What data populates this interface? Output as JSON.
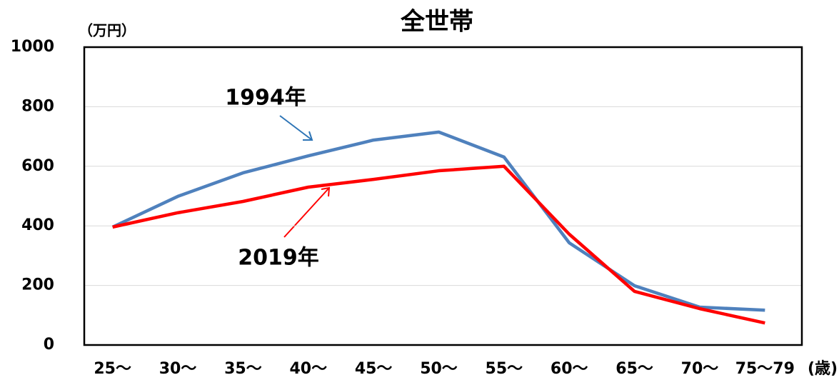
{
  "chart_data": {
    "type": "line",
    "title": "全世帯",
    "y_label": "（万円）",
    "x_label": "(歳)",
    "categories": [
      "25～",
      "30～",
      "35～",
      "40～",
      "45～",
      "50～",
      "55～",
      "60～",
      "65～",
      "70～",
      "75～79"
    ],
    "series": [
      {
        "name": "1994年",
        "color": "#4f81bd",
        "values": [
          396,
          499,
          578,
          635,
          688,
          715,
          631,
          343,
          199,
          127,
          117
        ]
      },
      {
        "name": "2019年",
        "color": "#ff0000",
        "values": [
          396,
          444,
          482,
          530,
          556,
          585,
          600,
          372,
          180,
          122,
          74
        ]
      }
    ],
    "ylim": [
      0,
      1000
    ],
    "yticks": [
      0,
      200,
      400,
      600,
      800,
      1000
    ],
    "grid": true
  }
}
